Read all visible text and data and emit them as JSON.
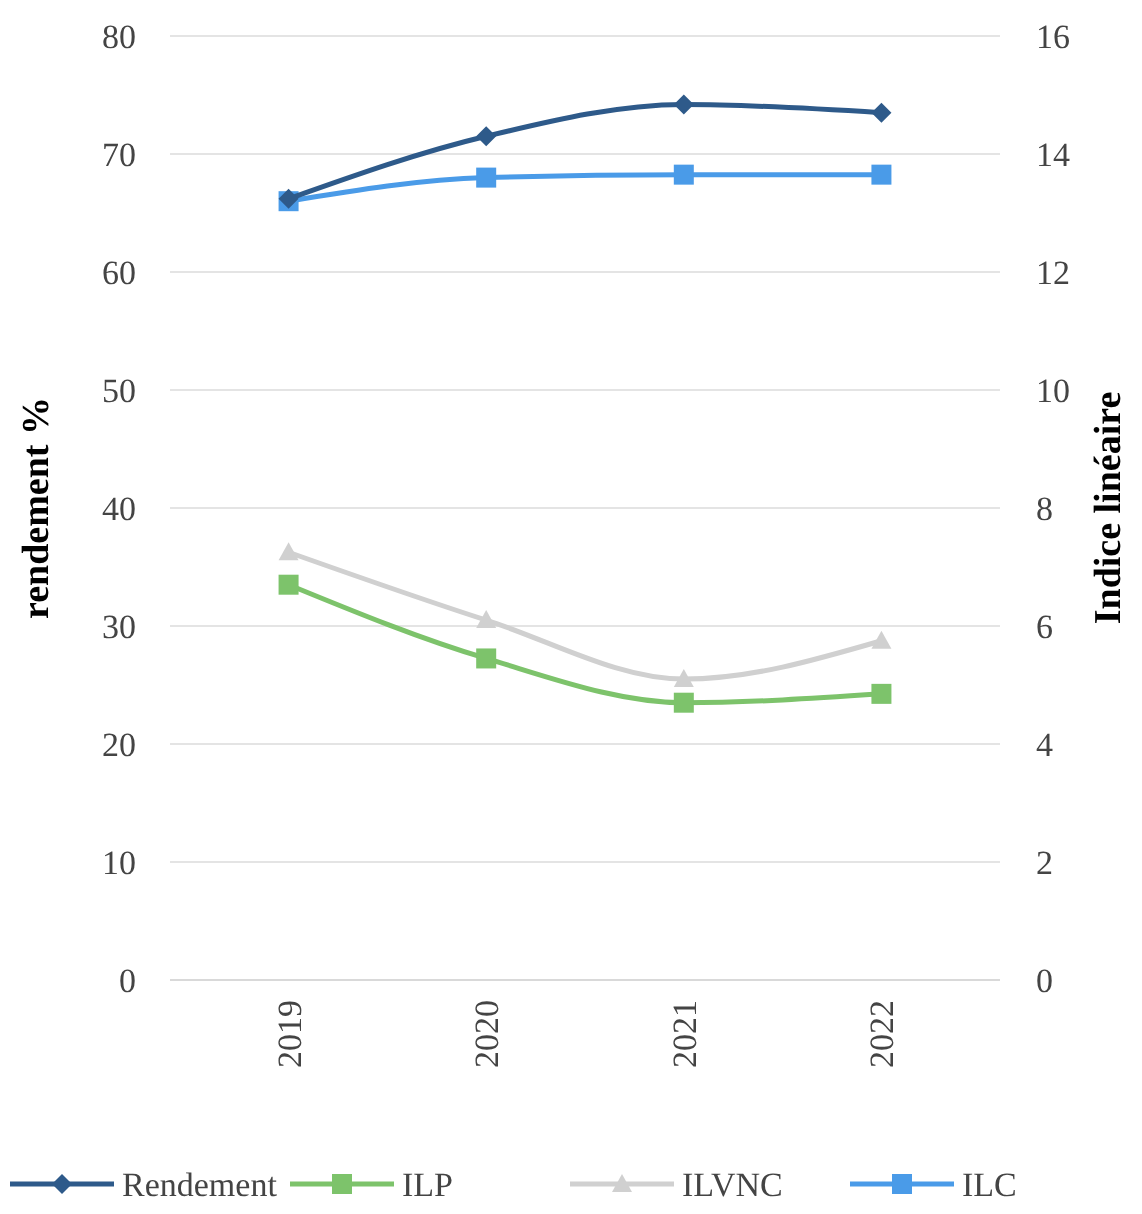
{
  "chart_data": {
    "type": "line",
    "categories": [
      "2019",
      "2020",
      "2021",
      "2022"
    ],
    "ylabel": "rendement %",
    "y2label": "Indice linéaire",
    "ylim": [
      0,
      80
    ],
    "yticks": [
      0,
      10,
      20,
      30,
      40,
      50,
      60,
      70,
      80
    ],
    "y2lim": [
      0,
      16
    ],
    "y2ticks": [
      0,
      2,
      4,
      6,
      8,
      10,
      12,
      14,
      16
    ],
    "grid": "y",
    "legend": "bottom",
    "series": [
      {
        "name": "Rendement",
        "color": "#2e5a8a",
        "marker": "diamond",
        "values": [
          66.2,
          71.5,
          74.2,
          73.5
        ]
      },
      {
        "name": "ILP",
        "color": "#7dc36b",
        "marker": "square",
        "axis": "y2",
        "values": [
          6.7,
          5.45,
          4.7,
          4.85
        ]
      },
      {
        "name": "ILVNC",
        "color": "#d0d0d0",
        "marker": "triangle",
        "axis": "y2",
        "values": [
          7.25,
          6.1,
          5.1,
          5.75
        ]
      },
      {
        "name": "ILC",
        "color": "#4a9be8",
        "marker": "square",
        "axis": "y2",
        "values": [
          13.2,
          13.6,
          13.65,
          13.65
        ]
      }
    ]
  }
}
